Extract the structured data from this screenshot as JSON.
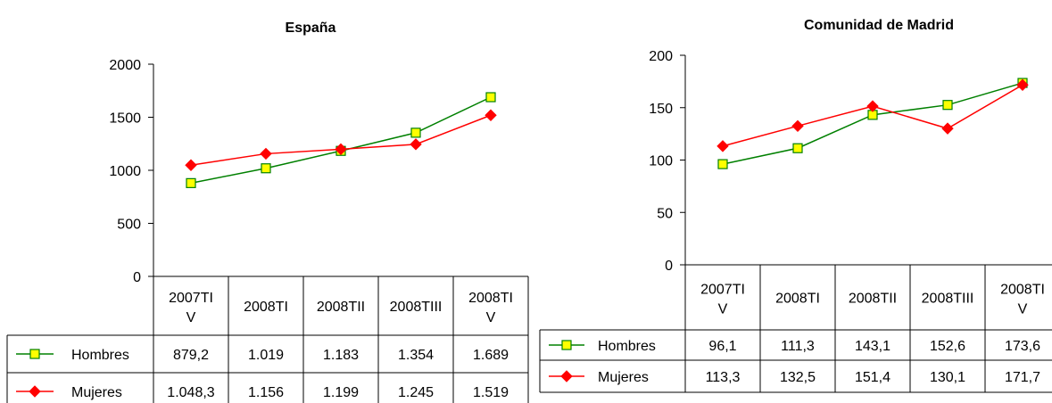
{
  "chart_data": [
    {
      "type": "line",
      "title": "España",
      "categories": [
        [
          "2007TI",
          "V"
        ],
        [
          "2008TI"
        ],
        [
          "2008TII"
        ],
        [
          "2008TIII"
        ],
        [
          "2008TI",
          "V"
        ]
      ],
      "ylim": [
        0,
        2000
      ],
      "yticks": [
        "0",
        "500",
        "1000",
        "1500",
        "2000"
      ],
      "grid": false,
      "legend": "data-table",
      "series": [
        {
          "name": "Hombres",
          "values": [
            879.2,
            1019,
            1183,
            1354,
            1689
          ],
          "labels": [
            "879,2",
            "1.019",
            "1.183",
            "1.354",
            "1.689"
          ],
          "color": "#008000",
          "marker": "square",
          "marker_fill": "#FFFF00"
        },
        {
          "name": "Mujeres",
          "values": [
            1048.3,
            1156,
            1199,
            1245,
            1519
          ],
          "labels": [
            "1.048,3",
            "1.156",
            "1.199",
            "1.245",
            "1.519"
          ],
          "color": "#FF0000",
          "marker": "diamond",
          "marker_fill": "#FF0000"
        }
      ]
    },
    {
      "type": "line",
      "title": "Comunidad de Madrid",
      "categories": [
        [
          "2007TI",
          "V"
        ],
        [
          "2008TI"
        ],
        [
          "2008TII"
        ],
        [
          "2008TIII"
        ],
        [
          "2008TI",
          "V"
        ]
      ],
      "ylim": [
        0,
        200
      ],
      "yticks": [
        "0",
        "50",
        "100",
        "150",
        "200"
      ],
      "grid": false,
      "legend": "data-table",
      "series": [
        {
          "name": "Hombres",
          "values": [
            96.1,
            111.3,
            143.1,
            152.6,
            173.6
          ],
          "labels": [
            "96,1",
            "111,3",
            "143,1",
            "152,6",
            "173,6"
          ],
          "color": "#008000",
          "marker": "square",
          "marker_fill": "#FFFF00"
        },
        {
          "name": "Mujeres",
          "values": [
            113.3,
            132.5,
            151.4,
            130.1,
            171.7
          ],
          "labels": [
            "113,3",
            "132,5",
            "151,4",
            "130,1",
            "171,7"
          ],
          "color": "#FF0000",
          "marker": "diamond",
          "marker_fill": "#FF0000"
        }
      ]
    }
  ]
}
